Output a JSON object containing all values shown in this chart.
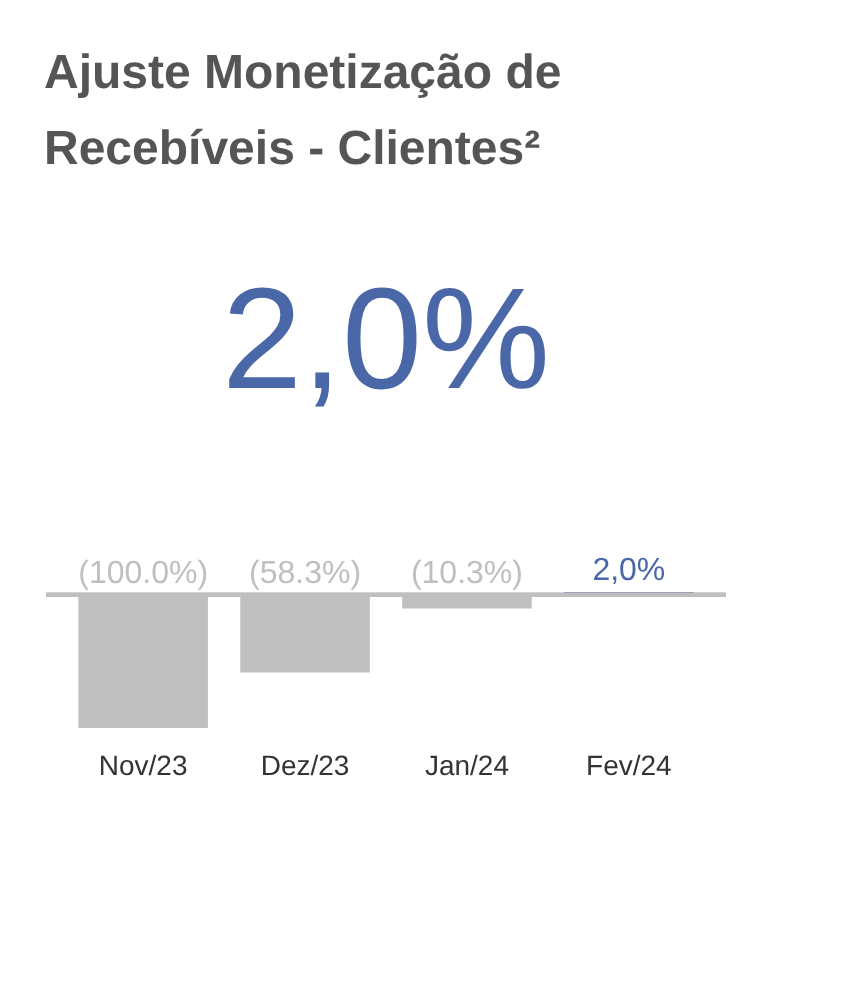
{
  "chart_data": {
    "type": "bar",
    "title": "Ajuste Monetização de Recebíveis - Clientes²",
    "annotations": [
      "2,0%"
    ],
    "categories": [
      "Nov/23",
      "Dez/23",
      "Jan/24",
      "Fev/24"
    ],
    "values": [
      -100.0,
      -58.3,
      -10.3,
      2.0
    ],
    "colors": [
      "#bfbfbf",
      "#bfbfbf",
      "#bfbfbf",
      "#4a67a8"
    ],
    "value_labels": [
      "(100.0%)",
      "(58.3%)",
      "(10.3%)",
      "2,0%"
    ],
    "tick_labels": "x"
  }
}
